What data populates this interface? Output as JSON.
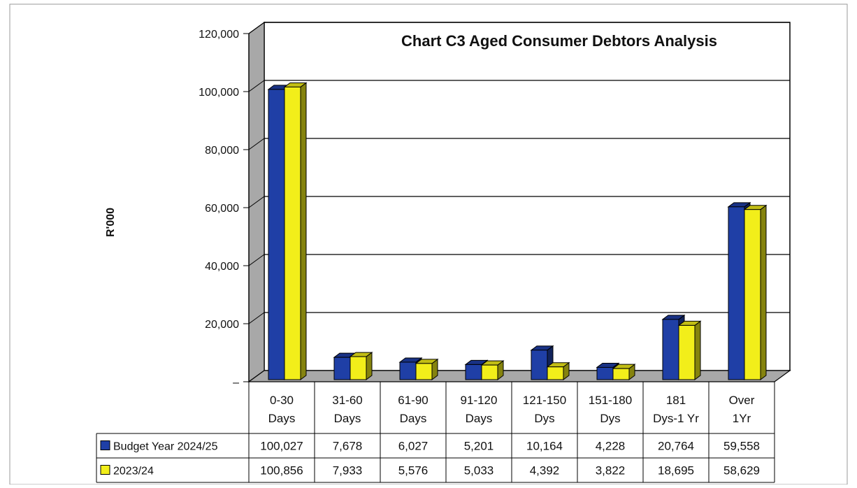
{
  "chart_data": {
    "type": "bar",
    "title": "Chart C3 Aged Consumer Debtors Analysis",
    "ylabel": "R'000",
    "ylim": [
      0,
      120000
    ],
    "y_ticks": [
      "120,000",
      "100,000",
      "80,000",
      "60,000",
      "40,000",
      "20,000",
      "–"
    ],
    "y_tick_values": [
      120000,
      100000,
      80000,
      60000,
      40000,
      20000,
      0
    ],
    "categories": [
      [
        "0-30",
        "Days"
      ],
      [
        "31-60",
        "Days"
      ],
      [
        "61-90",
        "Days"
      ],
      [
        "91-120",
        "Days"
      ],
      [
        "121-150",
        "Dys"
      ],
      [
        "151-180",
        "Dys"
      ],
      [
        "181",
        "Dys-1 Yr"
      ],
      [
        "Over",
        "1Yr"
      ]
    ],
    "series": [
      {
        "name": "Budget Year 2024/25",
        "color": "#1f3fa6",
        "values": [
          100027,
          7678,
          6027,
          5201,
          10164,
          4228,
          20764,
          59558
        ],
        "labels": [
          "100,027",
          "7,678",
          "6,027",
          "5,201",
          "10,164",
          "4,228",
          "20,764",
          "59,558"
        ]
      },
      {
        "name": "2023/24",
        "color": "#f2ee1a",
        "values": [
          100856,
          7933,
          5576,
          5033,
          4392,
          3822,
          18695,
          58629
        ],
        "labels": [
          "100,856",
          "7,933",
          "5,576",
          "5,033",
          "4,392",
          "3,822",
          "18,695",
          "58,629"
        ]
      }
    ],
    "grid": true,
    "legend": "data-table",
    "style": "3d-clustered"
  }
}
